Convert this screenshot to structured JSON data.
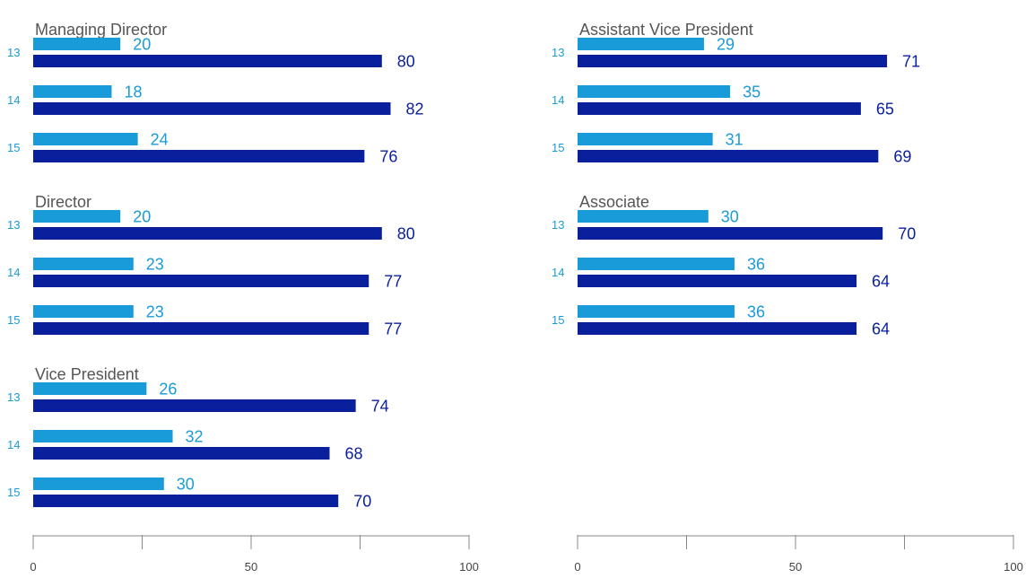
{
  "colors": {
    "light": "#1a9bd9",
    "dark": "#0a1f9c",
    "axis": "#888888",
    "title": "#555555"
  },
  "chart_data": {
    "type": "bar",
    "orientation": "horizontal",
    "xlim": [
      0,
      100
    ],
    "xticks": [
      0,
      50,
      100
    ],
    "grid": false,
    "legend": "none",
    "panels": [
      {
        "groups": [
          {
            "title": "Managing Director",
            "rows": [
              {
                "year": "13",
                "light": 20,
                "dark": 80
              },
              {
                "year": "14",
                "light": 18,
                "dark": 82
              },
              {
                "year": "15",
                "light": 24,
                "dark": 76
              }
            ]
          },
          {
            "title": "Director",
            "rows": [
              {
                "year": "13",
                "light": 20,
                "dark": 80
              },
              {
                "year": "14",
                "light": 23,
                "dark": 77
              },
              {
                "year": "15",
                "light": 23,
                "dark": 77
              }
            ]
          },
          {
            "title": "Vice President",
            "rows": [
              {
                "year": "13",
                "light": 26,
                "dark": 74
              },
              {
                "year": "14",
                "light": 32,
                "dark": 68
              },
              {
                "year": "15",
                "light": 30,
                "dark": 70
              }
            ]
          }
        ]
      },
      {
        "groups": [
          {
            "title": "Assistant Vice President",
            "rows": [
              {
                "year": "13",
                "light": 29,
                "dark": 71
              },
              {
                "year": "14",
                "light": 35,
                "dark": 65
              },
              {
                "year": "15",
                "light": 31,
                "dark": 69
              }
            ]
          },
          {
            "title": "Associate",
            "rows": [
              {
                "year": "13",
                "light": 30,
                "dark": 70
              },
              {
                "year": "14",
                "light": 36,
                "dark": 64
              },
              {
                "year": "15",
                "light": 36,
                "dark": 64
              }
            ]
          }
        ]
      }
    ]
  }
}
